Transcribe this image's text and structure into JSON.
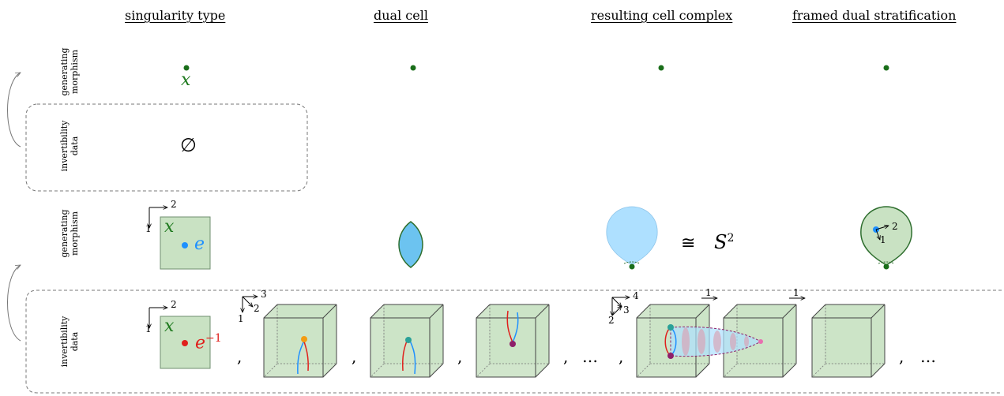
{
  "headers": {
    "singularity_type": "singularity type",
    "dual_cell": "dual cell",
    "resulting_cell_complex": "resulting cell complex",
    "framed_dual_stratification": "framed dual stratification"
  },
  "rows": {
    "row1_generating": [
      "generating",
      "morphism"
    ],
    "row1_invertibility": [
      "invertibility",
      "data"
    ],
    "row2_generating": [
      "generating",
      "morphism"
    ],
    "row2_invertibility": [
      "invertibility",
      "data"
    ]
  },
  "labels": {
    "x": "x",
    "empty_set": "∅",
    "e": "e",
    "e_inverse": "e",
    "minus_one": "−1",
    "sphere": "S",
    "sphere_exp": "2",
    "cong": "≅",
    "comma": ",",
    "ellipsis": "…",
    "axis_1": "1",
    "axis_2": "2",
    "axis_3": "3",
    "axis_4": "4"
  },
  "colors": {
    "green_dot": "#1a6e1a",
    "green_label": "#1f7a1f",
    "square_fill": "#c9e2c3",
    "square_stroke": "#5f8f5f",
    "blue": "#1e90ff",
    "light_blue": "#aee0ff",
    "red": "#e0201c",
    "orange": "#f39c12",
    "teal": "#2aa198",
    "purple": "#8e1f6a"
  }
}
